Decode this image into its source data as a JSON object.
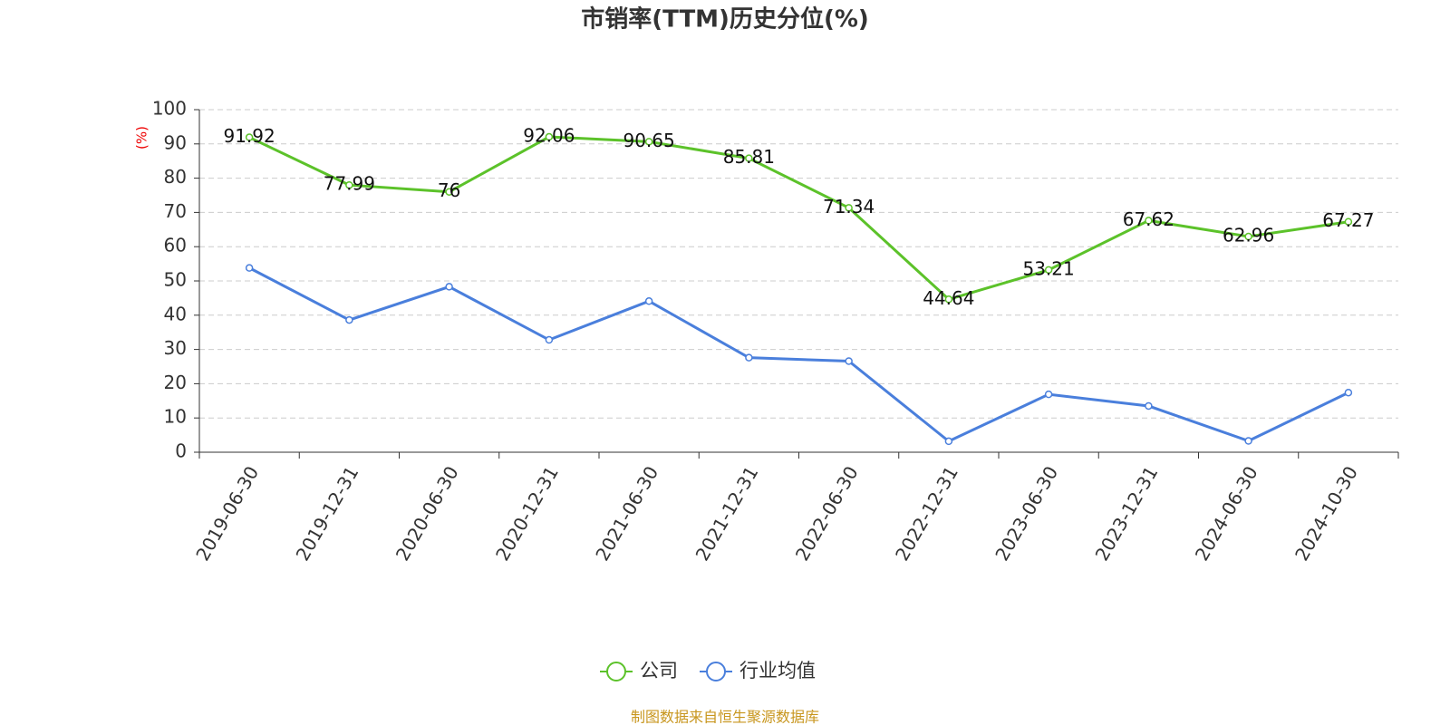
{
  "chart_data": {
    "type": "line",
    "title": "市销率(TTM)历史分位(%)",
    "y_label": "(%)",
    "categories": [
      "2019-06-30",
      "2019-12-31",
      "2020-06-30",
      "2020-12-31",
      "2021-06-30",
      "2021-12-31",
      "2022-06-30",
      "2022-12-31",
      "2023-06-30",
      "2023-12-31",
      "2024-06-30",
      "2024-10-30"
    ],
    "series": [
      {
        "name": "公司",
        "color": "#5cc22a",
        "values": [
          91.92,
          77.99,
          76,
          92.06,
          90.65,
          85.81,
          71.34,
          44.64,
          53.21,
          67.62,
          62.96,
          67.27
        ],
        "labels": true
      },
      {
        "name": "行业均值",
        "color": "#4a7fdc",
        "values": [
          53.8,
          38.6,
          48.3,
          32.8,
          44.1,
          27.6,
          26.6,
          3.2,
          16.9,
          13.5,
          3.3,
          17.4
        ],
        "labels": false
      }
    ],
    "ylim": [
      0,
      100
    ],
    "yticks": [
      0,
      10,
      20,
      30,
      40,
      50,
      60,
      70,
      80,
      90,
      100
    ],
    "grid": true,
    "source": "制图数据来自恒生聚源数据库"
  }
}
